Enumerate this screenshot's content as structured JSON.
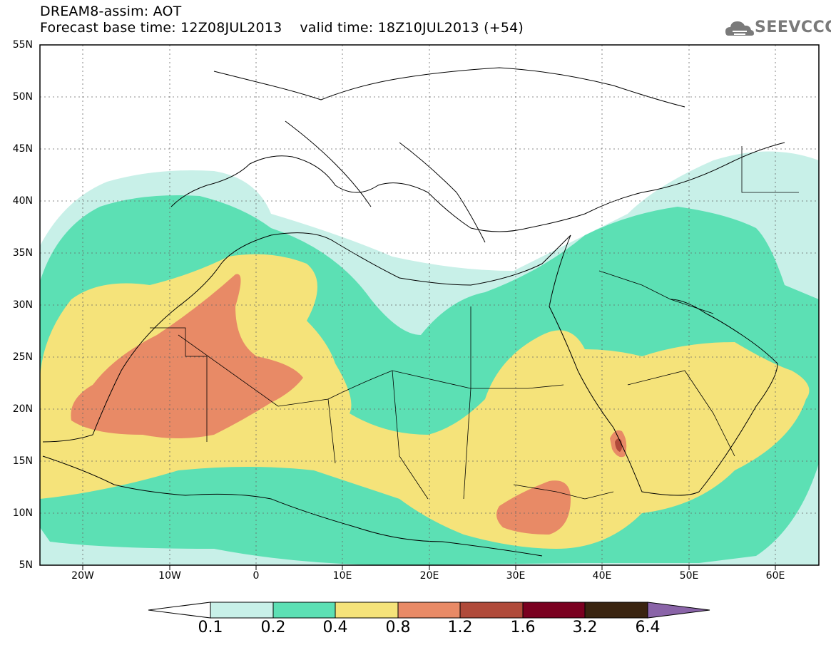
{
  "header": {
    "title_line1": "DREAM8-assim: AOT",
    "title_line2": "Forecast base time: 12Z08JUL2013    valid time: 18Z10JUL2013 (+54)",
    "logo_text": "SEEVCCC"
  },
  "map": {
    "lat_labels": [
      "55N",
      "50N",
      "45N",
      "40N",
      "35N",
      "30N",
      "25N",
      "20N",
      "15N",
      "10N",
      "5N"
    ],
    "lon_labels": [
      "20W",
      "10W",
      "0",
      "10E",
      "20E",
      "30E",
      "40E",
      "50E",
      "60E"
    ],
    "extent": {
      "lon_min": -25,
      "lon_max": 65,
      "lat_min": 5,
      "lat_max": 55
    }
  },
  "legend": {
    "labels": [
      "0.1",
      "0.2",
      "0.4",
      "0.8",
      "1.2",
      "1.6",
      "3.2",
      "6.4"
    ],
    "colors": {
      "below_0.1": "#ffffff",
      "0.1-0.2": "#c8f0e8",
      "0.2-0.4": "#5ce0b4",
      "0.4-0.8": "#f5e37a",
      "0.8-1.2": "#e88a66",
      "1.2-1.6": "#b04a3a",
      "1.6-3.2": "#7a0020",
      "3.2-6.4": "#3a2410",
      "above_6.4": "#8a64a8"
    }
  }
}
